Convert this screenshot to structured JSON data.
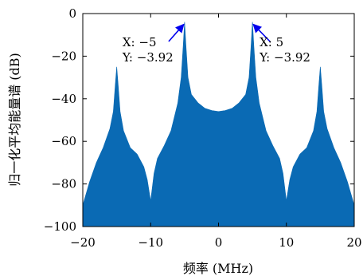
{
  "chart_data": {
    "type": "area",
    "xlabel": "频率 (MHz)",
    "ylabel": "归一化平均能量谱 (dB)",
    "xlim": [
      -20,
      20
    ],
    "ylim": [
      -100,
      0
    ],
    "xticks": [
      -20,
      -10,
      0,
      10,
      20
    ],
    "xtick_labels": [
      "−20",
      "−10",
      "0",
      "10",
      "20"
    ],
    "yticks": [
      0,
      -20,
      -40,
      -60,
      -80,
      -100
    ],
    "ytick_labels": [
      "0",
      "−20",
      "−40",
      "−60",
      "−80",
      "−100"
    ],
    "grid": false,
    "series": [
      {
        "color": "#0a6ab4",
        "x": [
          -20,
          -19,
          -18,
          -17,
          -16,
          -15.5,
          -15.2,
          -15,
          -14.8,
          -14.5,
          -14,
          -13,
          -12,
          -11,
          -10.5,
          -10,
          -9.5,
          -9,
          -8,
          -7,
          -6,
          -5.5,
          -5.2,
          -5,
          -4.8,
          -4.5,
          -4,
          -3,
          -2,
          -1,
          0,
          1,
          2,
          3,
          4,
          4.5,
          4.8,
          5,
          5.2,
          5.5,
          6,
          7,
          8,
          9,
          9.5,
          10,
          10.5,
          11,
          12,
          13,
          14,
          14.5,
          14.8,
          15,
          15.2,
          15.5,
          16,
          17,
          18,
          19,
          20
        ],
        "y": [
          -90,
          -79,
          -70,
          -63,
          -54,
          -46,
          -33,
          -25,
          -33,
          -46,
          -55,
          -63,
          -66,
          -72,
          -78,
          -88,
          -75,
          -68,
          -62,
          -55,
          -42,
          -30,
          -15,
          -3.92,
          -15,
          -30,
          -38,
          -42,
          -44.5,
          -45.5,
          -46,
          -45.5,
          -44.5,
          -42,
          -38,
          -30,
          -15,
          -3.92,
          -15,
          -30,
          -42,
          -55,
          -62,
          -68,
          -75,
          -88,
          -78,
          -72,
          -66,
          -63,
          -55,
          -46,
          -33,
          -25,
          -33,
          -46,
          -54,
          -63,
          -70,
          -79,
          -90
        ]
      }
    ],
    "annotations": [
      {
        "x": -5,
        "y": -3.92,
        "x_text": "X: −5",
        "y_text": "Y: −3.92"
      },
      {
        "x": 5,
        "y": -3.92,
        "x_text": "X: 5",
        "y_text": "Y: −3.92"
      }
    ]
  }
}
